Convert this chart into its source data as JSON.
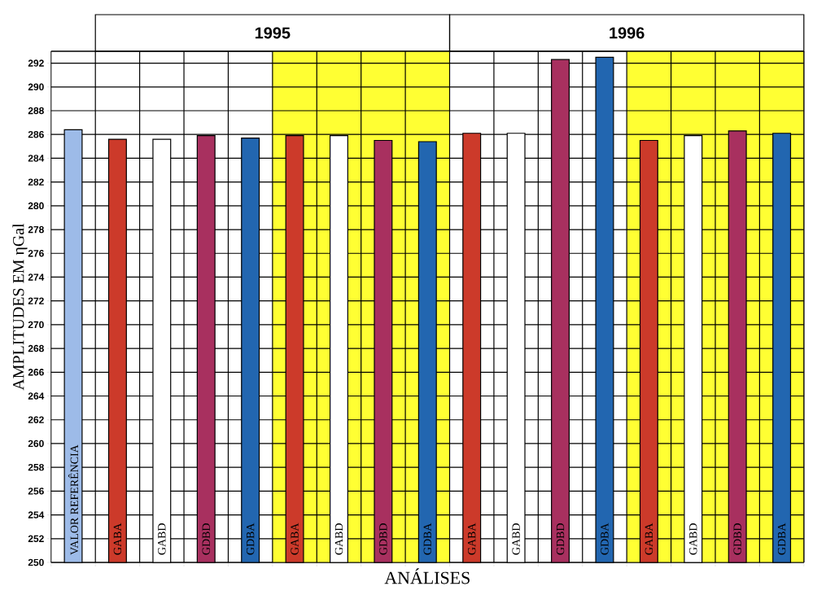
{
  "chart_data": {
    "type": "bar",
    "categories": [
      "VALOR REFERÊNCIA",
      "GABA",
      "GABD",
      "GDBD",
      "GDBA",
      "GABA",
      "GABD",
      "GDBD",
      "GDBA",
      "GABA",
      "GABD",
      "GDBD",
      "GDBA",
      "GABA",
      "GABD",
      "GDBD",
      "GDBA"
    ],
    "values": [
      286.4,
      285.6,
      285.6,
      285.9,
      285.7,
      285.9,
      285.9,
      285.5,
      285.4,
      286.1,
      286.1,
      292.3,
      292.5,
      285.5,
      285.9,
      286.3,
      286.1
    ],
    "colors": [
      "#9dbbe8",
      "#cc3a2a",
      "#ffffff",
      "#a8305f",
      "#2266b0",
      "#cc3a2a",
      "#ffffff",
      "#a8305f",
      "#2266b0",
      "#cc3a2a",
      "#ffffff",
      "#a8305f",
      "#2266b0",
      "#cc3a2a",
      "#ffffff",
      "#a8305f",
      "#2266b0"
    ],
    "xlabel": "ANÁLISES",
    "ylabel": "AMPLITUDES EM ηGal",
    "annotations": [
      "1995",
      "1996"
    ],
    "ylim": [
      250,
      293
    ],
    "yticks": [
      250,
      252,
      254,
      256,
      258,
      260,
      262,
      264,
      266,
      268,
      270,
      272,
      274,
      276,
      278,
      280,
      282,
      284,
      286,
      288,
      290,
      292
    ],
    "grid": true
  }
}
